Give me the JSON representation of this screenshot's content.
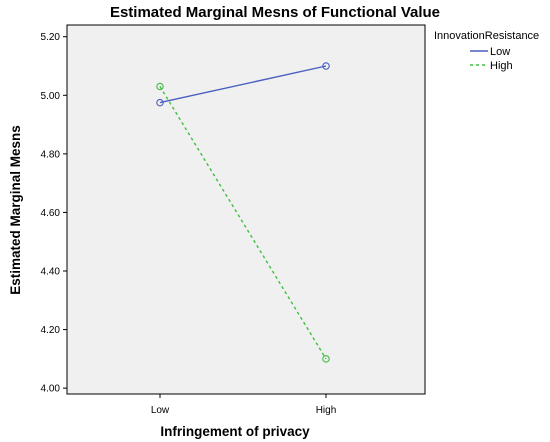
{
  "chart_data": {
    "type": "line",
    "title": "Estimated Marginal Mesns of Functional Value",
    "xlabel": "Infringement of privacy",
    "ylabel": "Estimated Marginal Mesns",
    "categories": [
      "Low",
      "High"
    ],
    "ylim": [
      3.98,
      5.24
    ],
    "yticks": [
      4.0,
      4.2,
      4.4,
      4.6,
      4.8,
      5.0,
      5.2
    ],
    "ytick_labels": [
      "4.00",
      "4.20",
      "4.40",
      "4.60",
      "4.80",
      "5.00",
      "5.20"
    ],
    "legend": {
      "title": "InnovationResistance",
      "placement": "right-top"
    },
    "grid": false,
    "plot_background": "#f0f0f0",
    "series": [
      {
        "name": "Low",
        "values": [
          4.975,
          5.1
        ],
        "color": "#4a5fbf",
        "style": "solid"
      },
      {
        "name": "High",
        "values": [
          5.03,
          4.1
        ],
        "color": "#3fbf3f",
        "style": "dashed"
      }
    ]
  }
}
